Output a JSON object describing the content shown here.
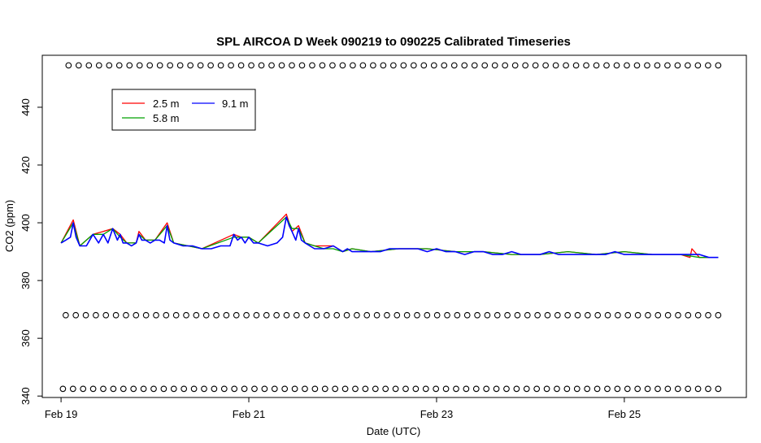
{
  "chart_data": {
    "type": "line",
    "title": "SPL AIRCOA D  Week 090219 to 090225  Calibrated Timeseries",
    "xlabel": "Date (UTC)",
    "ylabel": "CO2 (ppm)",
    "x_unit": "days since Feb 19 00:00 UTC",
    "xlim": [
      -0.2,
      7.3
    ],
    "ylim": [
      339.5,
      458
    ],
    "x_ticks": [
      {
        "value": 0,
        "label": "Feb 19"
      },
      {
        "value": 2,
        "label": "Feb 21"
      },
      {
        "value": 4,
        "label": "Feb 23"
      },
      {
        "value": 6,
        "label": "Feb 25"
      }
    ],
    "y_ticks": [
      340,
      360,
      380,
      400,
      420,
      440
    ],
    "grid": false,
    "legend": {
      "position": "top-left",
      "entries": [
        {
          "name": "2.5 m",
          "color": "#ff0000"
        },
        {
          "name": "5.8 m",
          "color": "#00a000"
        },
        {
          "name": "9.1 m",
          "color": "#0000ff"
        }
      ]
    },
    "series": [
      {
        "name": "9.1 m",
        "color": "#0000ff",
        "x": [
          0.0,
          0.05,
          0.1,
          0.13,
          0.16,
          0.2,
          0.27,
          0.34,
          0.4,
          0.45,
          0.5,
          0.55,
          0.6,
          0.63,
          0.66,
          0.7,
          0.75,
          0.8,
          0.83,
          0.86,
          0.9,
          0.95,
          1.0,
          1.05,
          1.1,
          1.13,
          1.16,
          1.2,
          1.3,
          1.4,
          1.5,
          1.6,
          1.7,
          1.8,
          1.84,
          1.88,
          1.92,
          1.96,
          2.0,
          2.05,
          2.1,
          2.2,
          2.3,
          2.36,
          2.4,
          2.43,
          2.46,
          2.5,
          2.53,
          2.56,
          2.6,
          2.65,
          2.7,
          2.8,
          2.9,
          2.95,
          3.0,
          3.05,
          3.1,
          3.15,
          3.2,
          3.3,
          3.4,
          3.5,
          3.6,
          3.7,
          3.8,
          3.9,
          4.0,
          4.1,
          4.2,
          4.3,
          4.4,
          4.5,
          4.6,
          4.7,
          4.8,
          4.9,
          5.0,
          5.1,
          5.2,
          5.3,
          5.4,
          5.5,
          5.6,
          5.7,
          5.8,
          5.9,
          6.0,
          6.1,
          6.2,
          6.3,
          6.4,
          6.5,
          6.6,
          6.7,
          6.8,
          6.9,
          7.0
        ],
        "values": [
          393,
          394,
          395,
          400,
          395,
          392,
          392,
          396,
          393,
          396,
          393,
          398,
          394,
          396,
          393,
          393,
          392,
          393,
          396,
          394,
          394,
          393,
          394,
          394,
          393,
          399,
          394,
          393,
          392,
          392,
          391,
          391,
          392,
          392,
          396,
          394,
          395,
          393,
          395,
          393,
          393,
          392,
          393,
          395,
          402,
          399,
          397,
          394,
          398,
          394,
          393,
          392,
          391,
          391,
          392,
          391,
          390,
          391,
          390,
          390,
          390,
          390,
          390,
          391,
          391,
          391,
          391,
          390,
          391,
          390,
          390,
          389,
          390,
          390,
          389,
          389,
          390,
          389,
          389,
          389,
          390,
          389,
          389,
          389,
          389,
          389,
          389,
          390,
          389,
          389,
          389,
          389,
          389,
          389,
          389,
          389,
          389,
          388,
          388
        ]
      },
      {
        "name": "2.5 m",
        "color": "#ff0000",
        "x": [
          0.0,
          0.13,
          0.2,
          0.34,
          0.45,
          0.55,
          0.63,
          0.7,
          0.8,
          0.83,
          0.9,
          1.0,
          1.13,
          1.2,
          1.5,
          1.84,
          1.92,
          2.0,
          2.1,
          2.4,
          2.46,
          2.53,
          2.6,
          2.7,
          2.8,
          2.9,
          3.0,
          3.1,
          3.3,
          3.6,
          3.9,
          4.2,
          4.5,
          4.8,
          5.1,
          5.4,
          5.7,
          6.0,
          6.3,
          6.6,
          6.7,
          6.72,
          6.8,
          7.0
        ],
        "values": [
          393,
          401,
          392,
          396,
          397,
          398,
          396,
          393,
          393,
          397,
          394,
          394,
          400,
          393,
          391,
          396,
          395,
          395,
          393,
          403,
          397,
          399,
          393,
          392,
          392,
          392,
          390,
          391,
          390,
          391,
          391,
          390,
          390,
          389,
          389,
          390,
          389,
          390,
          389,
          389,
          388,
          391,
          388,
          388
        ]
      },
      {
        "name": "5.8 m",
        "color": "#00a000",
        "x": [
          0.0,
          0.13,
          0.2,
          0.34,
          0.45,
          0.55,
          0.63,
          0.7,
          0.8,
          0.83,
          0.9,
          1.0,
          1.13,
          1.2,
          1.5,
          1.84,
          1.92,
          2.0,
          2.1,
          2.4,
          2.46,
          2.53,
          2.6,
          2.7,
          2.8,
          2.9,
          3.0,
          3.1,
          3.3,
          3.6,
          3.9,
          4.2,
          4.5,
          4.8,
          5.1,
          5.4,
          5.7,
          6.0,
          6.3,
          6.6,
          6.8,
          7.0
        ],
        "values": [
          393,
          400,
          392,
          396,
          396,
          398,
          395,
          393,
          393,
          396,
          394,
          394,
          399,
          393,
          391,
          395,
          395,
          395,
          393,
          402,
          398,
          398,
          393,
          392,
          391,
          391,
          390,
          391,
          390,
          391,
          391,
          390,
          390,
          389,
          389,
          390,
          389,
          390,
          389,
          389,
          388,
          388
        ]
      }
    ],
    "marker_rows": [
      {
        "y": 454.5,
        "x_start": 0.08,
        "x_end": 7.0,
        "count": 65
      },
      {
        "y": 368.0,
        "x_start": 0.05,
        "x_end": 7.0,
        "count": 66
      },
      {
        "y": 342.5,
        "x_start": 0.02,
        "x_end": 7.0,
        "count": 66
      }
    ]
  }
}
